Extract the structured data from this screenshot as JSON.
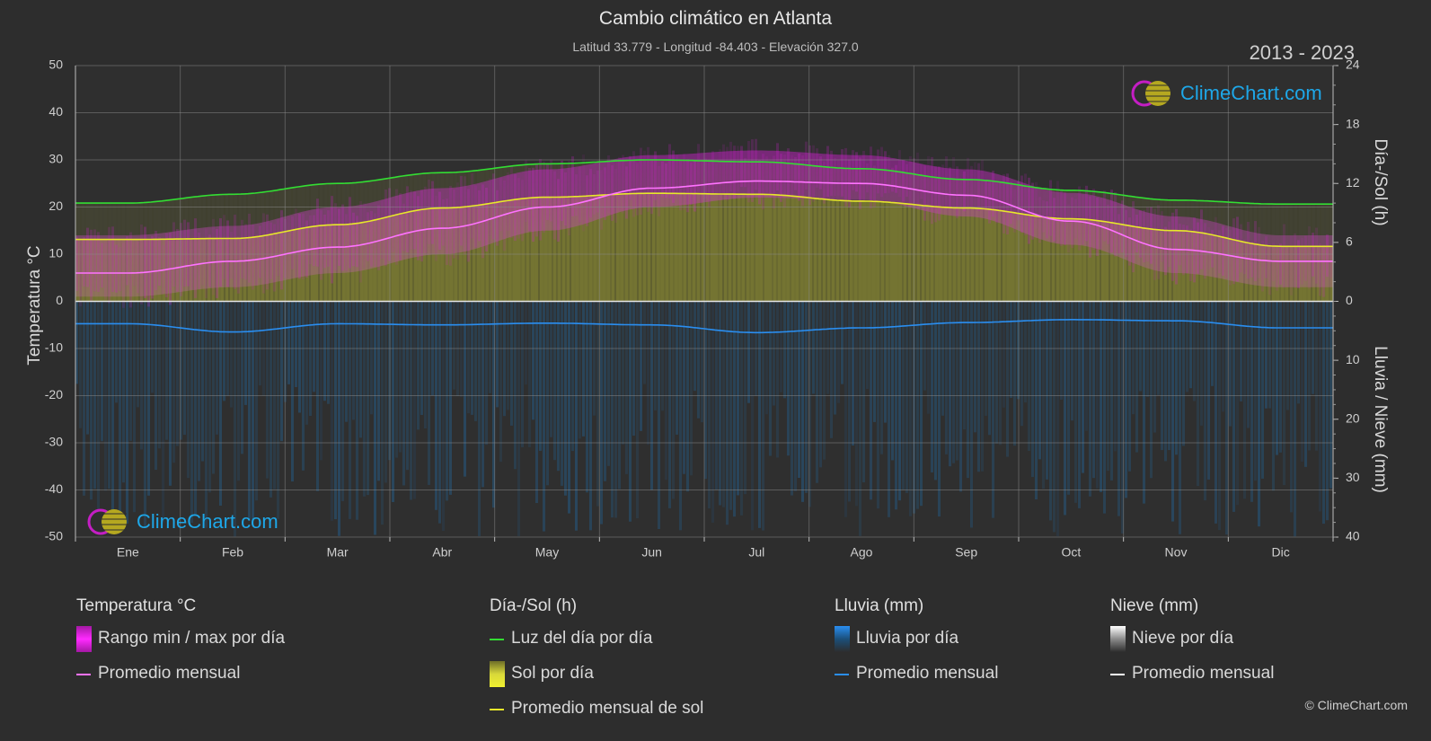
{
  "header": {
    "title": "Cambio climático en Atlanta",
    "subtitle": "Latitud 33.779 - Longitud -84.403 - Elevación 327.0",
    "years": "2013 - 2023"
  },
  "logo_text": "ClimeChart.com",
  "copyright": "© ClimeChart.com",
  "legend": {
    "temperature": {
      "title": "Temperatura °C",
      "items": [
        "Rango min / max por día",
        "Promedio mensual"
      ]
    },
    "sun": {
      "title": "Día-/Sol (h)",
      "items": [
        "Luz del día por día",
        "Sol por día",
        "Promedio mensual de sol"
      ]
    },
    "rain": {
      "title": "Lluvia (mm)",
      "items": [
        "Lluvia por día",
        "Promedio mensual"
      ]
    },
    "snow": {
      "title": "Nieve (mm)",
      "items": [
        "Nieve por día",
        "Promedio mensual"
      ]
    }
  },
  "colors": {
    "background": "#2d2d2d",
    "temp_range": "#d21ed2",
    "temp_avg": "#ff73ff",
    "daylight": "#33dd33",
    "sunshine": "#8a8a32",
    "sun_avg": "#e8e82a",
    "rain": "#1f6fae",
    "rain_avg": "#2a8ef0",
    "snow": "#ffffff",
    "snow_avg": "#ffffff"
  },
  "chart_data": {
    "type": "area",
    "categories": [
      "Ene",
      "Feb",
      "Mar",
      "Abr",
      "May",
      "Jun",
      "Jul",
      "Ago",
      "Sep",
      "Oct",
      "Nov",
      "Dic"
    ],
    "axes": {
      "left": {
        "label": "Temperatura °C",
        "range": [
          -50,
          50
        ],
        "ticks": [
          50,
          40,
          30,
          20,
          10,
          0,
          -10,
          -20,
          -30,
          -40,
          -50
        ]
      },
      "right_top": {
        "label": "Día-/Sol (h)",
        "range": [
          0,
          24
        ],
        "ticks": [
          24,
          18,
          12,
          6,
          0
        ]
      },
      "right_bottom": {
        "label": "Lluvia / Nieve (mm)",
        "range": [
          0,
          40
        ],
        "ticks": [
          0,
          10,
          20,
          30,
          40
        ]
      }
    },
    "grid": true,
    "series": [
      {
        "name": "Promedio mensual",
        "group": "temperature",
        "unit": "°C",
        "values": [
          6.0,
          8.5,
          11.5,
          15.5,
          20.0,
          24.0,
          25.5,
          25.0,
          22.5,
          17.0,
          11.0,
          8.5
        ]
      },
      {
        "group": "temperature_range",
        "unit": "°C",
        "min": [
          1.0,
          3.0,
          6.0,
          10.0,
          15.0,
          20.0,
          22.0,
          21.5,
          18.0,
          12.0,
          6.0,
          3.0
        ],
        "max": [
          14.0,
          16.0,
          20.0,
          24.0,
          28.0,
          31.0,
          32.0,
          31.0,
          28.0,
          23.0,
          18.0,
          14.0
        ]
      },
      {
        "name": "Luz del día por día",
        "group": "sun",
        "unit": "h",
        "values": [
          10.0,
          10.9,
          12.0,
          13.1,
          14.0,
          14.4,
          14.2,
          13.5,
          12.4,
          11.3,
          10.3,
          9.9
        ]
      },
      {
        "name": "Sol por día",
        "group": "sun",
        "unit": "h",
        "values": [
          6.3,
          6.4,
          7.8,
          9.5,
          10.6,
          11.0,
          10.9,
          10.2,
          9.5,
          8.4,
          7.2,
          5.6
        ]
      },
      {
        "name": "Promedio mensual de sol",
        "group": "sun",
        "unit": "h",
        "values": [
          6.3,
          6.4,
          7.8,
          9.5,
          10.6,
          11.0,
          10.9,
          10.2,
          9.5,
          8.4,
          7.2,
          5.6
        ]
      },
      {
        "name": "Promedio mensual",
        "group": "rain",
        "unit": "mm",
        "values": [
          3.8,
          5.2,
          3.8,
          4.0,
          3.7,
          4.0,
          5.3,
          4.5,
          3.6,
          3.1,
          3.3,
          4.5
        ]
      },
      {
        "name": "Promedio mensual",
        "group": "snow",
        "unit": "mm",
        "values": [
          0,
          0,
          0,
          0,
          0,
          0,
          0,
          0,
          0,
          0,
          0,
          0
        ]
      }
    ]
  }
}
